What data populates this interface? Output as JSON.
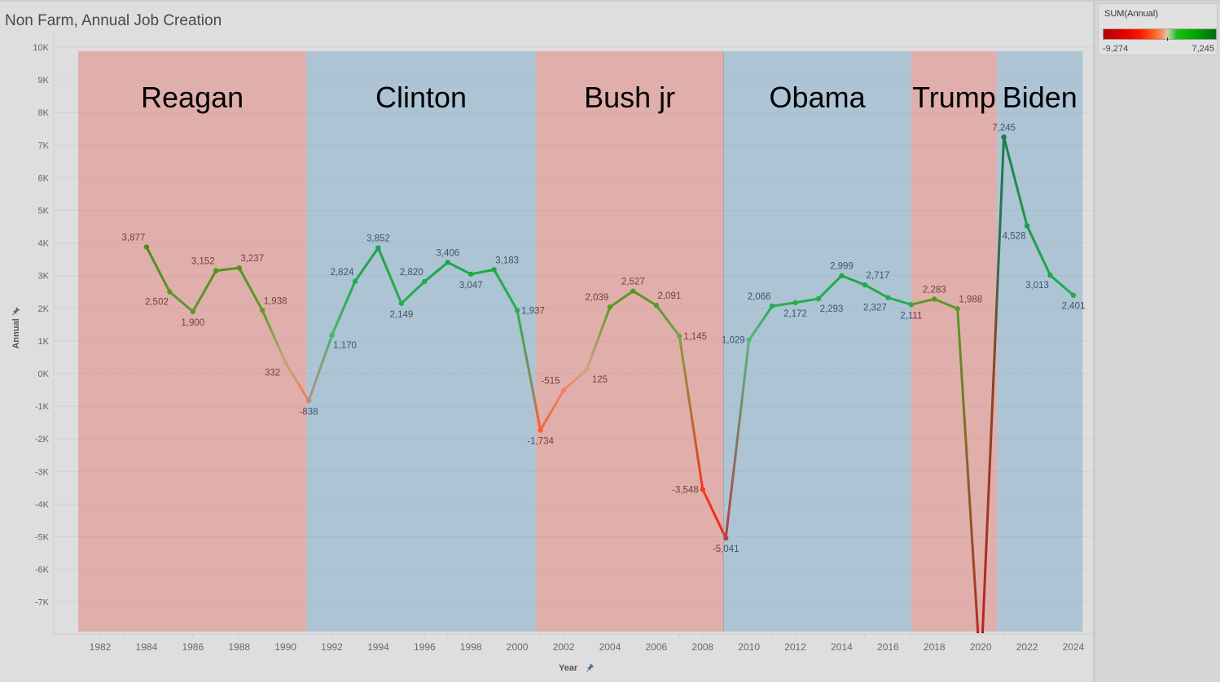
{
  "window": {
    "title": "Non Farm, Annual Job Creation"
  },
  "axes": {
    "y_title": "Annual",
    "x_title": "Year",
    "y_ticks": [
      {
        "label": "10K",
        "value": 10000
      },
      {
        "label": "9K",
        "value": 9000
      },
      {
        "label": "8K",
        "value": 8000
      },
      {
        "label": "7K",
        "value": 7000
      },
      {
        "label": "6K",
        "value": 6000
      },
      {
        "label": "5K",
        "value": 5000
      },
      {
        "label": "4K",
        "value": 4000
      },
      {
        "label": "3K",
        "value": 3000
      },
      {
        "label": "2K",
        "value": 2000
      },
      {
        "label": "1K",
        "value": 1000
      },
      {
        "label": "0K",
        "value": 0
      },
      {
        "label": "-1K",
        "value": -1000
      },
      {
        "label": "-2K",
        "value": -2000
      },
      {
        "label": "-3K",
        "value": -3000
      },
      {
        "label": "-4K",
        "value": -4000
      },
      {
        "label": "-5K",
        "value": -5000
      },
      {
        "label": "-6K",
        "value": -6000
      },
      {
        "label": "-7K",
        "value": -7000
      }
    ],
    "x_ticks": [
      "1982",
      "1984",
      "1986",
      "1988",
      "1990",
      "1992",
      "1994",
      "1996",
      "1998",
      "2000",
      "2002",
      "2004",
      "2006",
      "2008",
      "2010",
      "2012",
      "2014",
      "2016",
      "2018",
      "2020",
      "2022",
      "2024"
    ]
  },
  "legend": {
    "title": "SUM(Annual)",
    "min_label": "-9,274",
    "max_label": "7,245",
    "min": -9274,
    "max": 7245
  },
  "chart_data": {
    "type": "line",
    "title": "Non Farm, Annual Job Creation",
    "xlabel": "Year",
    "ylabel": "Annual",
    "xlim": [
      1980.5,
      2025
    ],
    "ylim": [
      -7950,
      10000
    ],
    "grid": true,
    "legend_position": "top-right",
    "x": [
      1984,
      1985,
      1986,
      1987,
      1988,
      1989,
      1990,
      1991,
      1992,
      1993,
      1994,
      1995,
      1996,
      1997,
      1998,
      1999,
      2000,
      2001,
      2002,
      2003,
      2004,
      2005,
      2006,
      2007,
      2008,
      2009,
      2010,
      2011,
      2012,
      2013,
      2014,
      2015,
      2016,
      2017,
      2018,
      2019,
      2020,
      2021,
      2022,
      2023,
      2024
    ],
    "values": [
      3877,
      2502,
      1900,
      3152,
      3237,
      1938,
      332,
      -838,
      1170,
      2824,
      3852,
      2149,
      2820,
      3406,
      3047,
      3183,
      1937,
      -1734,
      -515,
      125,
      2039,
      2527,
      2091,
      1145,
      -3548,
      -5041,
      1029,
      2066,
      2172,
      2293,
      2999,
      2717,
      2327,
      2111,
      2283,
      1988,
      -9274,
      7245,
      4528,
      3013,
      2401
    ],
    "label_positions": [
      "al",
      "bl",
      "b",
      "al",
      "ar",
      "ar",
      "bl",
      "b",
      "br",
      "al",
      "a",
      "b",
      "al",
      "a",
      "b",
      "ar",
      "r",
      "b",
      "al",
      "br",
      "al",
      "a",
      "ar",
      "r",
      "l",
      "b",
      "l",
      "al",
      "b",
      "br",
      "a",
      "ar",
      "bl",
      "b",
      "a",
      "ar",
      "none",
      "a",
      "bl",
      "bl",
      "b"
    ],
    "color_scale": [
      [
        -9274,
        "#b0000c"
      ],
      [
        -6500,
        "#e00000"
      ],
      [
        -4000,
        "#ff1400"
      ],
      [
        -2000,
        "#ff5a1e"
      ],
      [
        -700,
        "#ff8a5a"
      ],
      [
        0,
        "#e2c2ac"
      ],
      [
        500,
        "#9fd488"
      ],
      [
        1500,
        "#18c018"
      ],
      [
        3500,
        "#00b000"
      ],
      [
        7245,
        "#006e14"
      ]
    ],
    "bands": [
      {
        "label": "Reagan",
        "party": "republican",
        "from": 1981.05,
        "to": 1990.9
      },
      {
        "label": "Clinton",
        "party": "democrat",
        "from": 1990.9,
        "to": 2000.8
      },
      {
        "label": "Bush jr",
        "party": "republican",
        "from": 2000.8,
        "to": 2008.9
      },
      {
        "label": "Obama",
        "party": "democrat",
        "from": 2008.9,
        "to": 2017.0
      },
      {
        "label": "Trump",
        "party": "republican",
        "from": 2017.0,
        "to": 2020.7
      },
      {
        "label": "Biden",
        "party": "democrat",
        "from": 2020.7,
        "to": 2024.4
      }
    ],
    "band_colors": {
      "republican": "#e45a4f",
      "democrat": "#5296c5"
    },
    "band_opacity": 0.35
  }
}
